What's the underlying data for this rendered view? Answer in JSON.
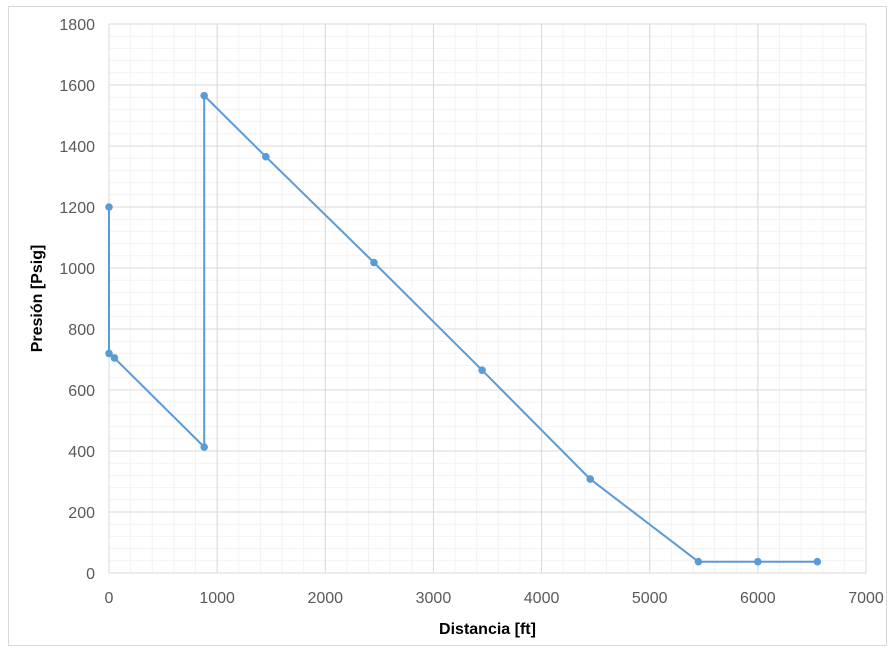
{
  "chart_data": {
    "type": "scatter",
    "xlabel": "Distancia [ft]",
    "ylabel": "Presión [Psig]",
    "xlim": [
      0,
      7000
    ],
    "ylim": [
      0,
      1800
    ],
    "xticks": [
      0,
      1000,
      2000,
      3000,
      4000,
      5000,
      6000,
      7000
    ],
    "yticks": [
      0,
      200,
      400,
      600,
      800,
      1000,
      1200,
      1400,
      1600,
      1800
    ],
    "grid": true,
    "minor_grid": true,
    "legend": "none",
    "series": [
      {
        "color": "#5b9bd5",
        "marker": "circle",
        "line": "straight",
        "points": [
          {
            "x": 0,
            "y": 1200
          },
          {
            "x": 0,
            "y": 720
          },
          {
            "x": 50,
            "y": 705
          },
          {
            "x": 880,
            "y": 413
          },
          {
            "x": 880,
            "y": 1565
          },
          {
            "x": 1450,
            "y": 1365
          },
          {
            "x": 2450,
            "y": 1018
          },
          {
            "x": 3450,
            "y": 665
          },
          {
            "x": 4450,
            "y": 308
          },
          {
            "x": 5450,
            "y": 37
          },
          {
            "x": 6000,
            "y": 37
          },
          {
            "x": 6550,
            "y": 37
          }
        ]
      }
    ]
  }
}
